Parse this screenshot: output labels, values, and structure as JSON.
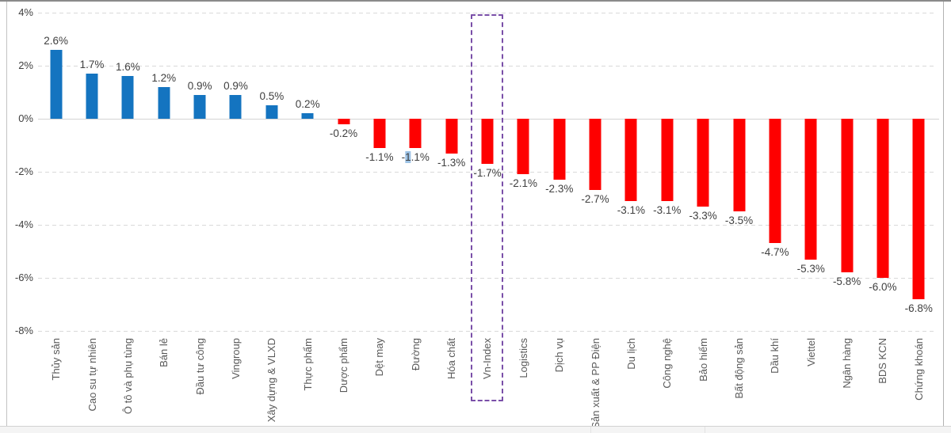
{
  "chart_data": {
    "type": "bar",
    "title": "",
    "xlabel": "",
    "ylabel": "",
    "categories": [
      "Thủy sản",
      "Cao su tự nhiên",
      "Ô tô và phụ tùng",
      "Bán lẻ",
      "Đầu tư công",
      "Vingroup",
      "Xây dựng & VLXD",
      "Thực phẩm",
      "Dược phẩm",
      "Dệt may",
      "Đường",
      "Hóa chất",
      "Vn-Index",
      "Logistics",
      "Dịch vụ",
      "Sản xuất & PP Điện",
      "Du lịch",
      "Công nghệ",
      "Bảo hiểm",
      "Bất động sản",
      "Dầu khí",
      "Viettel",
      "Ngân hàng",
      "BDS KCN",
      "Chứng khoán"
    ],
    "values": [
      2.6,
      1.7,
      1.6,
      1.2,
      0.9,
      0.9,
      0.5,
      0.2,
      -0.2,
      -1.1,
      -1.1,
      -1.3,
      -1.7,
      -2.1,
      -2.3,
      -2.7,
      -3.1,
      -3.1,
      -3.3,
      -3.5,
      -4.7,
      -5.3,
      -5.8,
      -6.0,
      -6.8
    ],
    "value_labels": [
      "2.6%",
      "1.7%",
      "1.6%",
      "1.2%",
      "0.9%",
      "0.9%",
      "0.5%",
      "0.2%",
      "-0.2%",
      "-1.1%",
      "-1.1%",
      "-1.3%",
      "-1.7%",
      "-2.1%",
      "-2.3%",
      "-2.7%",
      "-3.1%",
      "-3.1%",
      "-3.3%",
      "-3.5%",
      "-4.7%",
      "-5.3%",
      "-5.8%",
      "-6.0%",
      "-6.8%"
    ],
    "ylim": [
      -8,
      4
    ],
    "grid": "dashed horizontal gridlines, solid zero line",
    "legend": "none",
    "positive_bar_color": "#1474c0",
    "negative_bar_color": "#fe0000",
    "highlighted_category": "Vn-Index",
    "highlighted_category_index": 12,
    "annotations": {
      "vn_index_box": "dashed purple rectangle enclosing the Vn-Index bar and its axis label",
      "text_selection": {
        "category": "Đường",
        "category_index": 10,
        "label_pre": "-",
        "label_marked": "1",
        "label_post": ".1%",
        "selection_color": "#9dc3e6"
      }
    }
  },
  "y_axis": {
    "tick_labels": [
      "4%",
      "2%",
      "0%",
      "-2%",
      "-4%",
      "-6%",
      "-8%"
    ],
    "tick_values": [
      4,
      2,
      0,
      -2,
      -4,
      -6,
      -8
    ]
  },
  "colors": {
    "positive_bar": "#1474c0",
    "negative_bar": "#fe0000",
    "value_label_text": "#3f3f3f",
    "axis_tick_text": "#404040",
    "category_text": "#595959",
    "gridline": "#d9d9d9",
    "zero_line": "#d4d4d4",
    "highlight_box_border": "#7a4fa8",
    "selection_highlight": "#9dc3e6",
    "panel_border_top": "#8a8a8a",
    "panel_border_sides": "#c2c2c2"
  }
}
